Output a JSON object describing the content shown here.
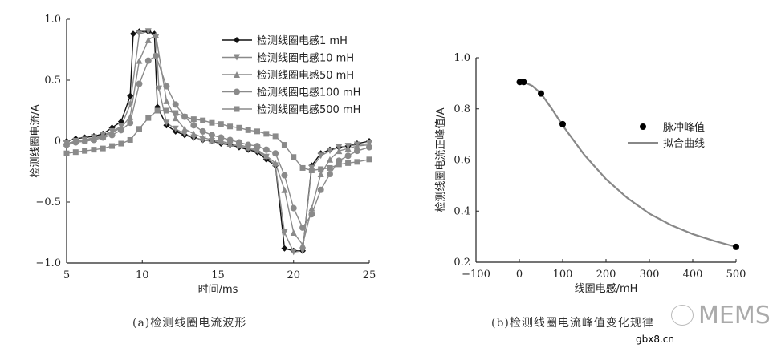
{
  "chart_data": [
    {
      "type": "line",
      "caption": "(a)检测线圈电流波形",
      "xlabel": "时间/ms",
      "ylabel": "检测线圈电流/A",
      "xlim": [
        5,
        25
      ],
      "ylim": [
        -1.0,
        1.0
      ],
      "xticks": [
        "5",
        "10",
        "15",
        "20",
        "25"
      ],
      "yticks": [
        "-1.0",
        "-0.5",
        "0",
        "0.5",
        "1.0"
      ],
      "grid": false,
      "legend_position": "top-right",
      "series": [
        {
          "name": "检测线圈电感1 mH",
          "marker": "diamond",
          "color": "#111111",
          "x": [
            5,
            5.6,
            6.2,
            6.8,
            7.4,
            8,
            8.6,
            9.2,
            9.4,
            9.8,
            10.4,
            10.8,
            11,
            11.6,
            12.2,
            12.8,
            13.4,
            14,
            14.6,
            15.2,
            15.8,
            16.4,
            17,
            17.6,
            18.2,
            18.8,
            19.4,
            20,
            20.6,
            21.2,
            21.8,
            22.4,
            23,
            23.6,
            24.2,
            25
          ],
          "y": [
            0.0,
            0.02,
            0.03,
            0.04,
            0.06,
            0.11,
            0.16,
            0.37,
            0.88,
            0.9,
            0.9,
            0.88,
            0.28,
            0.13,
            0.08,
            0.05,
            0.03,
            0.01,
            0.0,
            -0.02,
            -0.03,
            -0.05,
            -0.07,
            -0.09,
            -0.15,
            -0.2,
            -0.88,
            -0.9,
            -0.9,
            -0.2,
            -0.1,
            -0.07,
            -0.05,
            -0.04,
            -0.02,
            0.0
          ]
        },
        {
          "name": "检测线圈电感10 mH",
          "marker": "triangle-down",
          "color": "#8a8a8a",
          "x": [
            5,
            5.6,
            6.2,
            6.8,
            7.4,
            8,
            8.6,
            9.2,
            9.8,
            10.4,
            10.9,
            11.1,
            11.6,
            12.2,
            12.8,
            13.4,
            14,
            14.6,
            15.2,
            15.8,
            16.4,
            17,
            17.6,
            18.2,
            18.8,
            19.4,
            20,
            20.6,
            21.2,
            21.8,
            22.4,
            23,
            23.6,
            24.2,
            25
          ],
          "y": [
            -0.02,
            0.0,
            0.01,
            0.03,
            0.05,
            0.08,
            0.12,
            0.3,
            0.88,
            0.9,
            0.85,
            0.43,
            0.15,
            0.1,
            0.06,
            0.03,
            0.01,
            0.0,
            -0.01,
            -0.03,
            -0.04,
            -0.06,
            -0.08,
            -0.13,
            -0.2,
            -0.75,
            -0.91,
            -0.9,
            -0.22,
            -0.12,
            -0.08,
            -0.05,
            -0.04,
            -0.03,
            -0.02
          ]
        },
        {
          "name": "检测线圈电感50 mH",
          "marker": "triangle-up",
          "color": "#8a8a8a",
          "x": [
            5,
            5.6,
            6.2,
            6.8,
            7.4,
            8,
            8.6,
            9.2,
            9.8,
            10.4,
            10.9,
            11.6,
            12.2,
            12.8,
            13.4,
            14,
            14.6,
            15.2,
            15.8,
            16.4,
            17,
            17.6,
            18.2,
            18.8,
            19.4,
            20,
            20.6,
            21.2,
            21.8,
            22.4,
            23,
            23.6,
            24.2,
            25
          ],
          "y": [
            -0.02,
            0.0,
            0.01,
            0.02,
            0.04,
            0.07,
            0.11,
            0.2,
            0.66,
            0.83,
            0.87,
            0.33,
            0.19,
            0.1,
            0.06,
            0.03,
            0.01,
            0.0,
            -0.02,
            -0.03,
            -0.05,
            -0.07,
            -0.12,
            -0.18,
            -0.4,
            -0.75,
            -0.85,
            -0.55,
            -0.27,
            -0.15,
            -0.08,
            -0.06,
            -0.04,
            -0.03
          ]
        },
        {
          "name": "检测线圈电感100 mH",
          "marker": "circle",
          "color": "#8a8a8a",
          "x": [
            5,
            5.6,
            6.2,
            6.8,
            7.4,
            8,
            8.6,
            9.2,
            9.8,
            10.4,
            10.9,
            11.6,
            12.2,
            12.8,
            13.4,
            14,
            14.6,
            15.2,
            15.8,
            16.4,
            17,
            17.6,
            18.2,
            18.8,
            19.4,
            20,
            20.6,
            21.2,
            21.8,
            22.4,
            23,
            23.6,
            24.2,
            25
          ],
          "y": [
            -0.03,
            -0.01,
            0.0,
            0.01,
            0.03,
            0.05,
            0.09,
            0.15,
            0.47,
            0.66,
            0.7,
            0.45,
            0.3,
            0.2,
            0.13,
            0.08,
            0.05,
            0.03,
            0.01,
            -0.01,
            -0.03,
            -0.04,
            -0.07,
            -0.1,
            -0.28,
            -0.55,
            -0.71,
            -0.6,
            -0.4,
            -0.27,
            -0.16,
            -0.12,
            -0.08,
            -0.05
          ]
        },
        {
          "name": "检测线圈电感500 mH",
          "marker": "square",
          "color": "#8a8a8a",
          "x": [
            5,
            5.6,
            6.2,
            6.8,
            7.4,
            8,
            8.6,
            9.2,
            9.8,
            10.4,
            11,
            11.6,
            12.2,
            12.8,
            13.4,
            14,
            14.6,
            15.2,
            15.8,
            16.4,
            17,
            17.6,
            18.2,
            18.8,
            19.4,
            20,
            20.6,
            21.2,
            21.8,
            22.4,
            23,
            23.6,
            24.2,
            25
          ],
          "y": [
            -0.1,
            -0.09,
            -0.08,
            -0.07,
            -0.06,
            -0.04,
            -0.02,
            0.01,
            0.1,
            0.19,
            0.25,
            0.25,
            0.23,
            0.2,
            0.18,
            0.17,
            0.15,
            0.14,
            0.12,
            0.11,
            0.09,
            0.08,
            0.06,
            0.04,
            -0.03,
            -0.13,
            -0.22,
            -0.24,
            -0.23,
            -0.22,
            -0.19,
            -0.18,
            -0.17,
            -0.15
          ]
        }
      ]
    },
    {
      "type": "scatter",
      "caption": "(b)检测线圈电流峰值变化规律",
      "xlabel": "线圈电感/mH",
      "ylabel": "检测线圈电流正峰值/A",
      "xlim": [
        -100,
        500
      ],
      "ylim": [
        0.2,
        1.0
      ],
      "xticks": [
        "-100",
        "0",
        "100",
        "200",
        "300",
        "400",
        "500"
      ],
      "yticks": [
        "0.2",
        "0.4",
        "0.6",
        "0.8",
        "1.0"
      ],
      "grid": false,
      "legend_position": "right",
      "series": [
        {
          "name": "脉冲峰值",
          "marker": "circle",
          "color": "#000000",
          "x": [
            1,
            10,
            50,
            100,
            500
          ],
          "y": [
            0.905,
            0.905,
            0.86,
            0.74,
            0.26
          ]
        },
        {
          "name": "拟合曲线",
          "marker": "none",
          "color": "#888888",
          "x": [
            10,
            30,
            50,
            75,
            100,
            150,
            200,
            250,
            300,
            350,
            400,
            450,
            500
          ],
          "y": [
            0.905,
            0.89,
            0.86,
            0.8,
            0.735,
            0.62,
            0.525,
            0.45,
            0.39,
            0.345,
            0.31,
            0.283,
            0.26
          ]
        }
      ]
    }
  ],
  "watermark": {
    "text": "MEMS",
    "site": "gbx8.cn"
  }
}
